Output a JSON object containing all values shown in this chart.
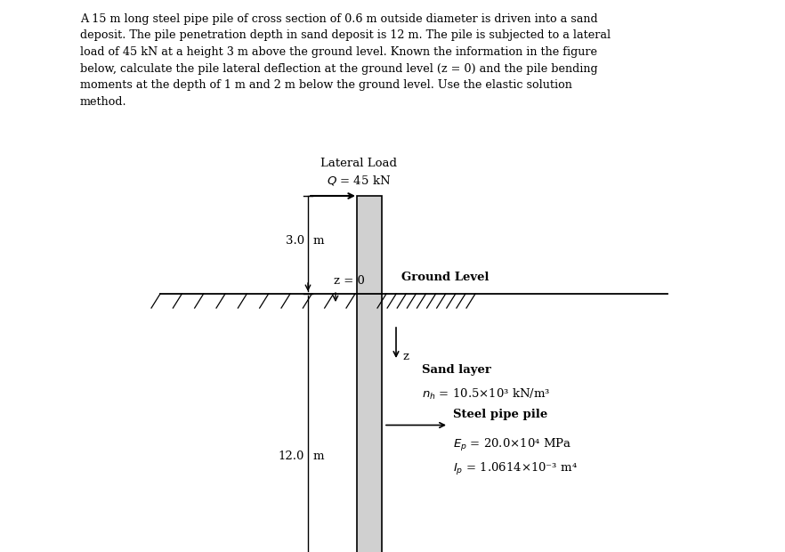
{
  "title_text": "A 15 m long steel pipe pile of cross section of 0.6 m outside diameter is driven into a sand\ndeposit. The pile penetration depth in sand deposit is 12 m. The pile is subjected to a lateral\nload of 45 kN at a height 3 m above the ground level. Known the information in the figure\nbelow, calculate the pile lateral deflection at the ground level (z = 0) and the pile bending\nmoments at the depth of 1 m and 2 m below the ground level. Use the elastic solution\nmethod.",
  "background_color": "#ffffff",
  "lateral_load_label": "Lateral Load",
  "Q_label": "$Q$ = 45 kN",
  "height_label": "3.0",
  "height_unit": "m",
  "z_label": "z = 0",
  "ground_label": "Ground Level",
  "z_arrow_label": "z",
  "depth_label": "12.0",
  "depth_unit": "m",
  "sand_label": "Sand layer",
  "nh_label": "$n_h$ = 10.5×10³ kN/m³",
  "steel_pile_label": "Steel pipe pile",
  "Ep_label": "$E_p$ = 20.0×10⁴ MPa",
  "Ip_label": "$I_p$ = 1.0614×10⁻³ m⁴",
  "pile_color": "#d0d0d0",
  "pile_outline_color": "#000000",
  "ground_line_color": "#000000",
  "hatch_color": "#000000",
  "text_color": "#000000",
  "fig_width": 8.82,
  "fig_height": 6.2,
  "dpi": 100
}
